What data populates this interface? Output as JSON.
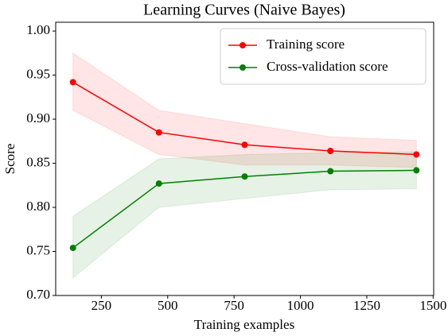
{
  "chart_data": {
    "type": "line",
    "title": "Learning Curves (Naive Bayes)",
    "x_label": "Training examples",
    "y_label": "Score",
    "x": [
      143,
      467,
      790,
      1113,
      1437
    ],
    "series": [
      {
        "name": "Training score",
        "color": "#ff0000",
        "values": [
          0.942,
          0.885,
          0.871,
          0.864,
          0.86
        ],
        "upper": [
          0.975,
          0.91,
          0.895,
          0.88,
          0.876
        ],
        "lower": [
          0.91,
          0.86,
          0.848,
          0.848,
          0.845
        ]
      },
      {
        "name": "Cross-validation score",
        "color": "#008000",
        "values": [
          0.754,
          0.827,
          0.835,
          0.841,
          0.842
        ],
        "upper": [
          0.79,
          0.855,
          0.86,
          0.862,
          0.863
        ],
        "lower": [
          0.72,
          0.8,
          0.81,
          0.82,
          0.821
        ]
      }
    ],
    "xlim": [
      78,
      1502
    ],
    "ylim": [
      0.7,
      1.01
    ],
    "xticks": [
      250,
      500,
      750,
      1000,
      1250,
      1500
    ],
    "yticks": [
      {
        "value": 0.7,
        "label": "0.70"
      },
      {
        "value": 0.75,
        "label": "0.75"
      },
      {
        "value": 0.8,
        "label": "0.80"
      },
      {
        "value": 0.85,
        "label": "0.85"
      },
      {
        "value": 0.9,
        "label": "0.90"
      },
      {
        "value": 0.95,
        "label": "0.95"
      },
      {
        "value": 1.0,
        "label": "1.00"
      }
    ],
    "legend": "upper right",
    "grid": false
  }
}
